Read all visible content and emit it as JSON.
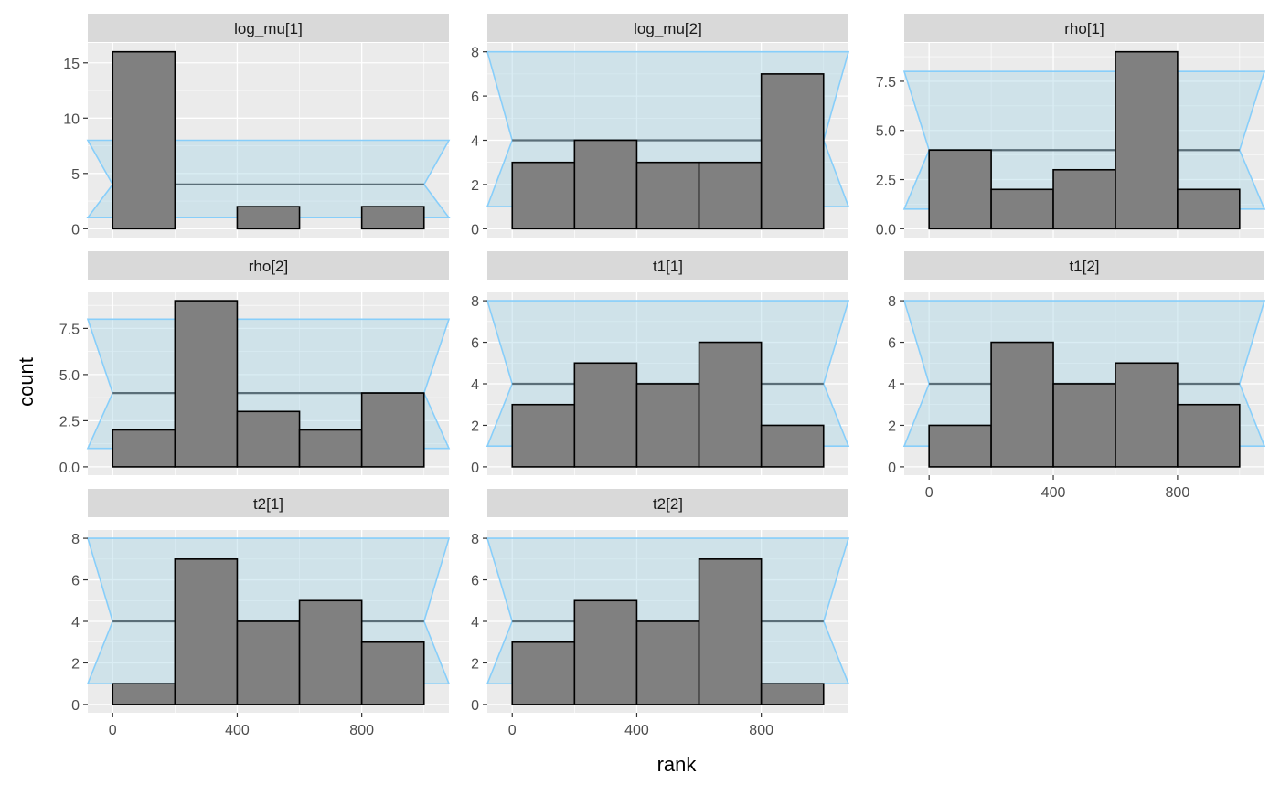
{
  "chart_data": {
    "type": "bar",
    "xlabel": "rank",
    "ylabel": "count",
    "x_ticks": [
      0,
      400,
      800
    ],
    "bin_edges": [
      0,
      200,
      400,
      600,
      800,
      1000
    ],
    "band": {
      "lower": 1,
      "mid": 4,
      "upper": 8
    },
    "xlim": [
      -80,
      1080
    ],
    "colors": {
      "bar": "#808080",
      "band_fill": "#add8e6",
      "band_line": "#87cefa",
      "mid_line": "#5a6e78",
      "panel": "#ebebeb",
      "strip": "#d9d9d9"
    },
    "panels": [
      {
        "title": "log_mu[1]",
        "counts": [
          16,
          0,
          2,
          0,
          2
        ],
        "ylim": [
          -0.8,
          16.8
        ],
        "y_ticks": [
          0,
          5,
          10,
          15
        ],
        "y_tick_labels": [
          "0",
          "5",
          "10",
          "15"
        ]
      },
      {
        "title": "log_mu[2]",
        "counts": [
          3,
          4,
          3,
          3,
          7
        ],
        "ylim": [
          -0.4,
          8.4
        ],
        "y_ticks": [
          0,
          2,
          4,
          6,
          8
        ],
        "y_tick_labels": [
          "0",
          "2",
          "4",
          "6",
          "8"
        ]
      },
      {
        "title": "rho[1]",
        "counts": [
          4,
          2,
          3,
          9,
          2
        ],
        "ylim": [
          -0.45,
          9.45
        ],
        "y_ticks": [
          0,
          2.5,
          5,
          7.5
        ],
        "y_tick_labels": [
          "0.0",
          "2.5",
          "5.0",
          "7.5"
        ]
      },
      {
        "title": "rho[2]",
        "counts": [
          2,
          9,
          3,
          2,
          4
        ],
        "ylim": [
          -0.45,
          9.45
        ],
        "y_ticks": [
          0,
          2.5,
          5,
          7.5
        ],
        "y_tick_labels": [
          "0.0",
          "2.5",
          "5.0",
          "7.5"
        ]
      },
      {
        "title": "t1[1]",
        "counts": [
          3,
          5,
          4,
          6,
          2
        ],
        "ylim": [
          -0.4,
          8.4
        ],
        "y_ticks": [
          0,
          2,
          4,
          6,
          8
        ],
        "y_tick_labels": [
          "0",
          "2",
          "4",
          "6",
          "8"
        ]
      },
      {
        "title": "t1[2]",
        "counts": [
          2,
          6,
          4,
          5,
          3
        ],
        "ylim": [
          -0.4,
          8.4
        ],
        "y_ticks": [
          0,
          2,
          4,
          6,
          8
        ],
        "y_tick_labels": [
          "0",
          "2",
          "4",
          "6",
          "8"
        ]
      },
      {
        "title": "t2[1]",
        "counts": [
          1,
          7,
          4,
          5,
          3
        ],
        "ylim": [
          -0.4,
          8.4
        ],
        "y_ticks": [
          0,
          2,
          4,
          6,
          8
        ],
        "y_tick_labels": [
          "0",
          "2",
          "4",
          "6",
          "8"
        ]
      },
      {
        "title": "t2[2]",
        "counts": [
          3,
          5,
          4,
          7,
          1
        ],
        "ylim": [
          -0.4,
          8.4
        ],
        "y_ticks": [
          0,
          2,
          4,
          6,
          8
        ],
        "y_tick_labels": [
          "0",
          "2",
          "4",
          "6",
          "8"
        ]
      }
    ]
  }
}
